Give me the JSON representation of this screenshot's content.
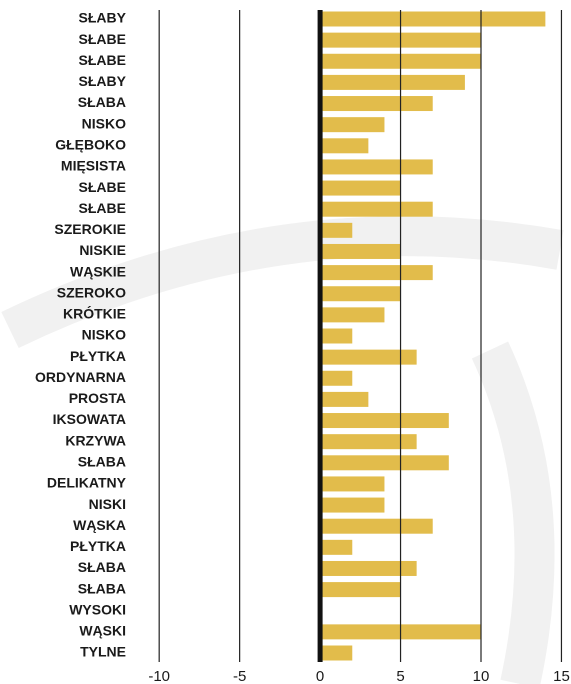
{
  "chart_data": {
    "type": "barh",
    "categories": [
      "SŁABY",
      "SŁABE",
      "SŁABE",
      "SŁABY",
      "SŁABA",
      "NISKO",
      "GŁĘBOKO",
      "MIĘSISTA",
      "SŁABE",
      "SŁABE",
      "SZEROKIE",
      "NISKIE",
      "WĄSKIE",
      "SZEROKO",
      "KRÓTKIE",
      "NISKO",
      "PŁYTKA",
      "ORDYNARNA",
      "PROSTA",
      "IKSOWATA",
      "KRZYWA",
      "SŁABA",
      "DELIKATNY",
      "NISKI",
      "WĄSKA",
      "PŁYTKA",
      "SŁABA",
      "SŁABA",
      "WYSOKI",
      "WĄSKI",
      "TYLNE"
    ],
    "values": [
      14,
      10,
      10,
      9,
      7,
      4,
      3,
      7,
      5,
      7,
      2,
      5,
      7,
      5,
      4,
      2,
      6,
      2,
      3,
      8,
      6,
      8,
      4,
      4,
      7,
      2,
      6,
      5,
      0,
      10,
      2
    ],
    "color": "#e2bc4b",
    "xlim": [
      -12,
      15.5
    ],
    "xticks": [
      -10,
      -5,
      0,
      5,
      10,
      15
    ],
    "grid": true
  }
}
